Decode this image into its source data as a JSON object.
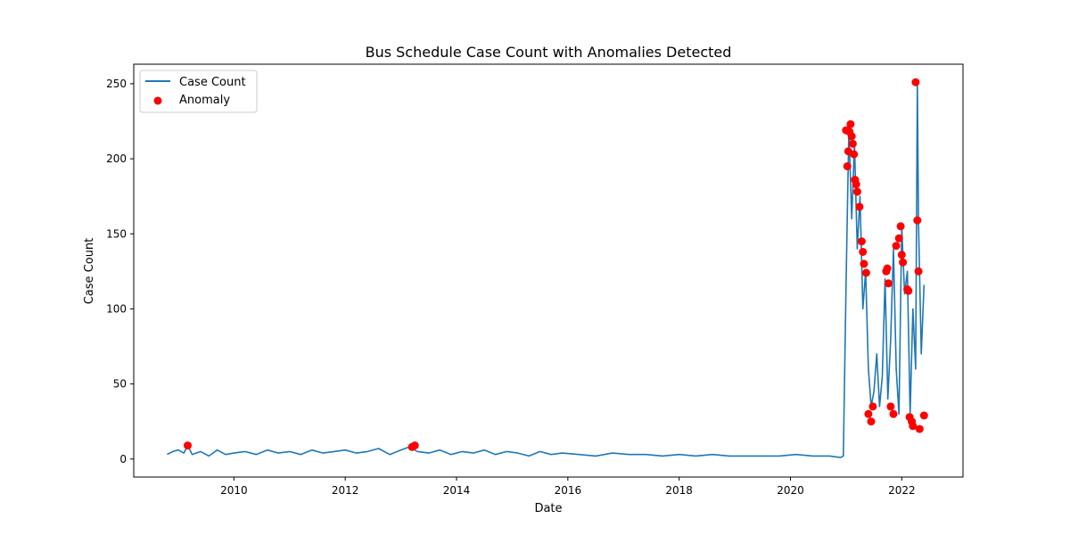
{
  "chart_data": {
    "type": "line",
    "title": "Bus Schedule Case Count with Anomalies Detected",
    "xlabel": "Date",
    "ylabel": "Case Count",
    "xlim": [
      2008.2,
      2023.1
    ],
    "ylim": [
      -12,
      263
    ],
    "x_ticks": [
      2010,
      2012,
      2014,
      2016,
      2018,
      2020,
      2022
    ],
    "y_ticks": [
      0,
      50,
      100,
      150,
      200,
      250
    ],
    "grid": false,
    "legend_position": "top-left",
    "colors": {
      "line": "#1f77b4",
      "anomaly": "#ff0000"
    },
    "series": [
      {
        "name": "Case Count",
        "kind": "line",
        "x": [
          2008.8,
          2008.9,
          2009.0,
          2009.1,
          2009.17,
          2009.25,
          2009.4,
          2009.55,
          2009.7,
          2009.85,
          2010.0,
          2010.2,
          2010.4,
          2010.6,
          2010.8,
          2011.0,
          2011.2,
          2011.4,
          2011.6,
          2011.8,
          2012.0,
          2012.2,
          2012.4,
          2012.6,
          2012.8,
          2013.0,
          2013.15,
          2013.3,
          2013.5,
          2013.7,
          2013.9,
          2014.1,
          2014.3,
          2014.5,
          2014.7,
          2014.9,
          2015.1,
          2015.3,
          2015.5,
          2015.7,
          2015.9,
          2016.2,
          2016.5,
          2016.8,
          2017.1,
          2017.4,
          2017.7,
          2018.0,
          2018.3,
          2018.6,
          2018.9,
          2019.2,
          2019.5,
          2019.8,
          2020.1,
          2020.4,
          2020.7,
          2020.9,
          2020.95,
          2021.0,
          2021.05,
          2021.1,
          2021.15,
          2021.2,
          2021.25,
          2021.3,
          2021.35,
          2021.4,
          2021.45,
          2021.5,
          2021.55,
          2021.6,
          2021.65,
          2021.7,
          2021.75,
          2021.8,
          2021.85,
          2021.9,
          2021.95,
          2022.0,
          2022.05,
          2022.1,
          2022.15,
          2022.2,
          2022.25,
          2022.28,
          2022.3,
          2022.35,
          2022.4
        ],
        "y": [
          3,
          5,
          6,
          4,
          9,
          3,
          5,
          2,
          6,
          3,
          4,
          5,
          3,
          6,
          4,
          5,
          3,
          6,
          4,
          5,
          6,
          4,
          5,
          7,
          3,
          6,
          8,
          5,
          4,
          6,
          3,
          5,
          4,
          6,
          3,
          5,
          4,
          2,
          5,
          3,
          4,
          3,
          2,
          4,
          3,
          3,
          2,
          3,
          2,
          3,
          2,
          2,
          2,
          2,
          3,
          2,
          2,
          1,
          2,
          118,
          220,
          160,
          210,
          140,
          175,
          100,
          125,
          60,
          35,
          45,
          70,
          35,
          55,
          120,
          40,
          80,
          140,
          60,
          30,
          155,
          110,
          125,
          30,
          100,
          60,
          251,
          158,
          70,
          116
        ]
      },
      {
        "name": "Anomaly",
        "kind": "scatter",
        "x": [
          2009.17,
          2013.2,
          2013.25,
          2021.0,
          2021.02,
          2021.04,
          2021.06,
          2021.08,
          2021.1,
          2021.12,
          2021.14,
          2021.16,
          2021.18,
          2021.2,
          2021.24,
          2021.28,
          2021.3,
          2021.32,
          2021.36,
          2021.4,
          2021.45,
          2021.48,
          2021.72,
          2021.74,
          2021.76,
          2021.8,
          2021.85,
          2021.9,
          2021.95,
          2021.98,
          2022.0,
          2022.02,
          2022.1,
          2022.12,
          2022.14,
          2022.18,
          2022.2,
          2022.25,
          2022.28,
          2022.3,
          2022.32,
          2022.4
        ],
        "y": [
          9,
          8,
          9,
          219,
          195,
          205,
          218,
          223,
          215,
          210,
          203,
          186,
          183,
          178,
          168,
          145,
          138,
          130,
          124,
          30,
          25,
          35,
          125,
          127,
          117,
          35,
          30,
          142,
          147,
          155,
          136,
          131,
          113,
          112,
          28,
          25,
          22,
          251,
          159,
          125,
          20,
          29
        ]
      }
    ]
  }
}
